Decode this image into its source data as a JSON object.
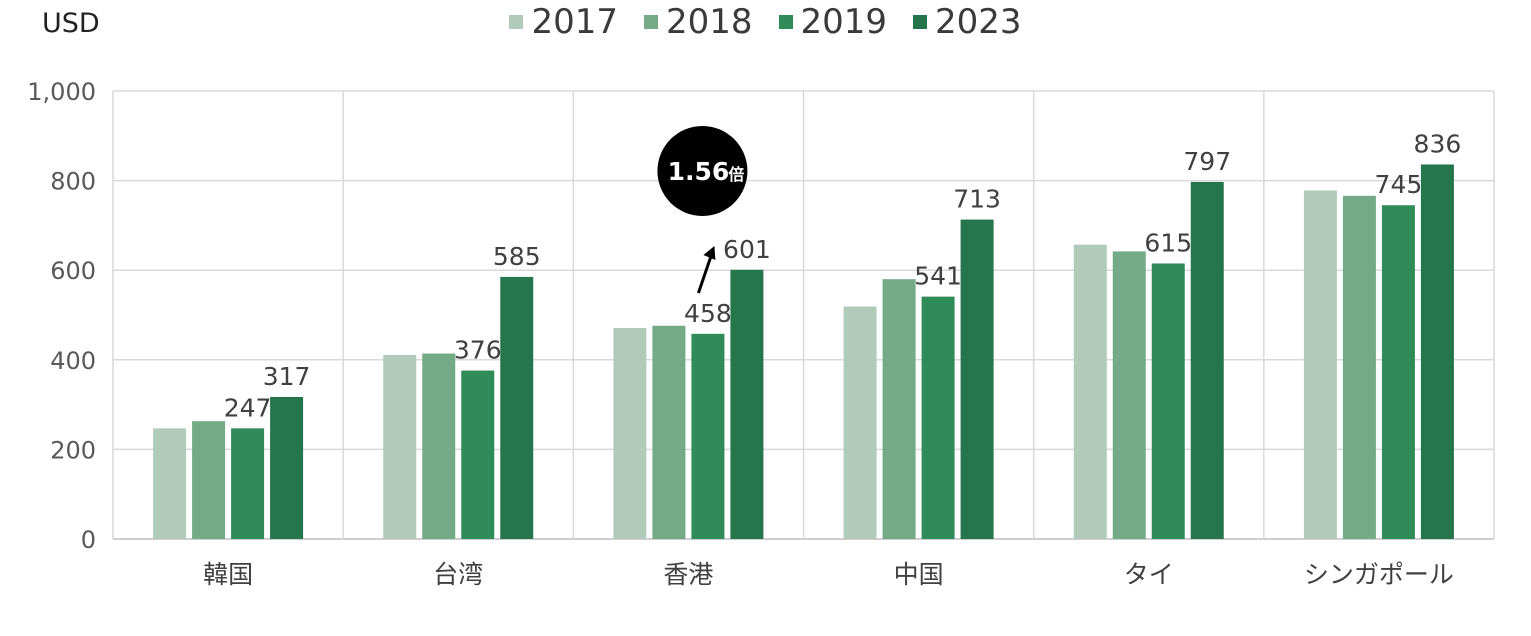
{
  "chart_data": {
    "type": "bar",
    "unit_label": "USD",
    "categories": [
      "韓国",
      "台湾",
      "香港",
      "中国",
      "タイ",
      "シンガポール"
    ],
    "series": [
      {
        "name": "2017",
        "color": "#b0cbb9",
        "values": [
          247,
          411,
          471,
          519,
          657,
          778
        ]
      },
      {
        "name": "2018",
        "color": "#72ab86",
        "values": [
          263,
          414,
          476,
          580,
          642,
          766
        ]
      },
      {
        "name": "2019",
        "color": "#2f8b58",
        "values": [
          247,
          376,
          458,
          541,
          615,
          745
        ]
      },
      {
        "name": "2023",
        "color": "#26764d",
        "values": [
          317,
          585,
          601,
          713,
          797,
          836
        ]
      }
    ],
    "data_labels": {
      "韓国": {
        "2019": "247",
        "2023": "317"
      },
      "台湾": {
        "2019": "376",
        "2023": "585"
      },
      "香港": {
        "2019": "458",
        "2023": "601"
      },
      "中国": {
        "2019": "541",
        "2023": "713"
      },
      "タイ": {
        "2019": "615",
        "2023": "797"
      },
      "シンガポール": {
        "2019": "745",
        "2023": "836"
      }
    },
    "yticks": [
      "0",
      "200",
      "400",
      "600",
      "800",
      "1,000"
    ],
    "ylim": [
      0,
      1000
    ],
    "legend_position": "top",
    "grid": true,
    "annotation": {
      "category": "香港",
      "text": "1.56",
      "suffix": "倍"
    }
  }
}
